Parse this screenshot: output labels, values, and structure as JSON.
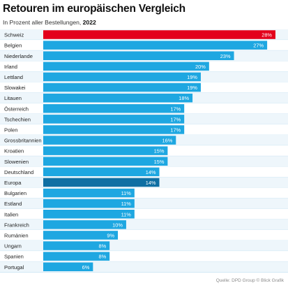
{
  "header": {
    "title": "Retouren im europäischen Vergleich",
    "subtitle": "In Prozent aller Bestellungen,",
    "year": "2022"
  },
  "source": "Quelle: DPD Group © Blick Grafik",
  "colors": {
    "highlight": "#e3001b",
    "bar": "#1ea7e1",
    "aggregate": "#0f6fa3",
    "row_band": "#eef6fb",
    "separator": "#b7dcef",
    "label_text": "#222222",
    "value_text": "#ffffff"
  },
  "chart_data": {
    "type": "bar",
    "orientation": "horizontal",
    "title": "Retouren im europäischen Vergleich",
    "subtitle": "In Prozent aller Bestellungen, 2022",
    "unit": "%",
    "xlim": [
      0,
      28
    ],
    "grid": false,
    "legend": "none",
    "categories": [
      "Schweiz",
      "Belgien",
      "Niederlande",
      "Irland",
      "Lettland",
      "Slowakei",
      "Litauen",
      "Österreich",
      "Tschechien",
      "Polen",
      "Grossbritannien",
      "Kroatien",
      "Slowenien",
      "Deutschland",
      "Europa",
      "Bulgarien",
      "Estland",
      "Italien",
      "Frankreich",
      "Rumänien",
      "Ungarn",
      "Spanien",
      "Portugal"
    ],
    "values": [
      28,
      27,
      23,
      20,
      19,
      19,
      18,
      17,
      17,
      17,
      16,
      15,
      15,
      14,
      14,
      11,
      11,
      11,
      10,
      9,
      8,
      8,
      6
    ],
    "value_labels": [
      "28%",
      "27%",
      "23%",
      "20%",
      "19%",
      "19%",
      "18%",
      "17%",
      "17%",
      "17%",
      "16%",
      "15%",
      "15%",
      "14%",
      "14%",
      "11%",
      "11%",
      "11%",
      "10%",
      "9%",
      "8%",
      "8%",
      "6%"
    ],
    "highlighted": "Schweiz",
    "aggregate": "Europa"
  }
}
